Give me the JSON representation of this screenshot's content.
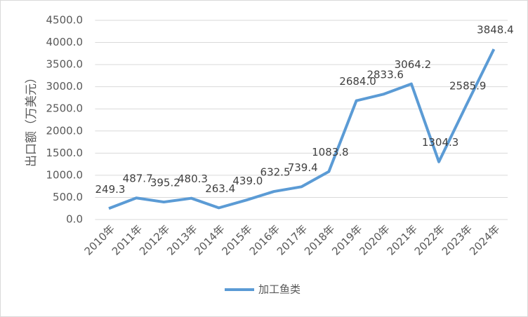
{
  "chart_data": {
    "type": "line",
    "y_label": "出口额（万美元）",
    "categories": [
      "2010年",
      "2011年",
      "2012年",
      "2013年",
      "2014年",
      "2015年",
      "2016年",
      "2017年",
      "2018年",
      "2019年",
      "2020年",
      "2021年",
      "2022年",
      "2023年",
      "2024年"
    ],
    "series": [
      {
        "name": "加工鱼类",
        "color": "#5b9bd5",
        "values": [
          249.3,
          487.7,
          395.2,
          480.3,
          263.4,
          439.0,
          632.5,
          739.4,
          1083.8,
          2684.0,
          2833.6,
          3064.2,
          1304.3,
          2585.9,
          3848.4
        ],
        "value_labels": [
          "249.3",
          "487.7",
          "395.2",
          "480.3",
          "263.4",
          "439.0",
          "632.5",
          "739.4",
          "1083.8",
          "2684.0",
          "2833.6",
          "3064.2",
          "1304.3",
          "2585.9",
          "3848.4"
        ]
      }
    ],
    "ylim": [
      0,
      4500
    ],
    "yticks": [
      {
        "value": 0,
        "label": "0.0"
      },
      {
        "value": 500,
        "label": "500.0"
      },
      {
        "value": 1000,
        "label": "1000.0"
      },
      {
        "value": 1500,
        "label": "1500.0"
      },
      {
        "value": 2000,
        "label": "2000.0"
      },
      {
        "value": 2500,
        "label": "2500.0"
      },
      {
        "value": 3000,
        "label": "3000.0"
      },
      {
        "value": 3500,
        "label": "3500.0"
      },
      {
        "value": 4000,
        "label": "4000.0"
      },
      {
        "value": 4500,
        "label": "4500.0"
      }
    ],
    "grid": true,
    "legend": "bottom"
  }
}
